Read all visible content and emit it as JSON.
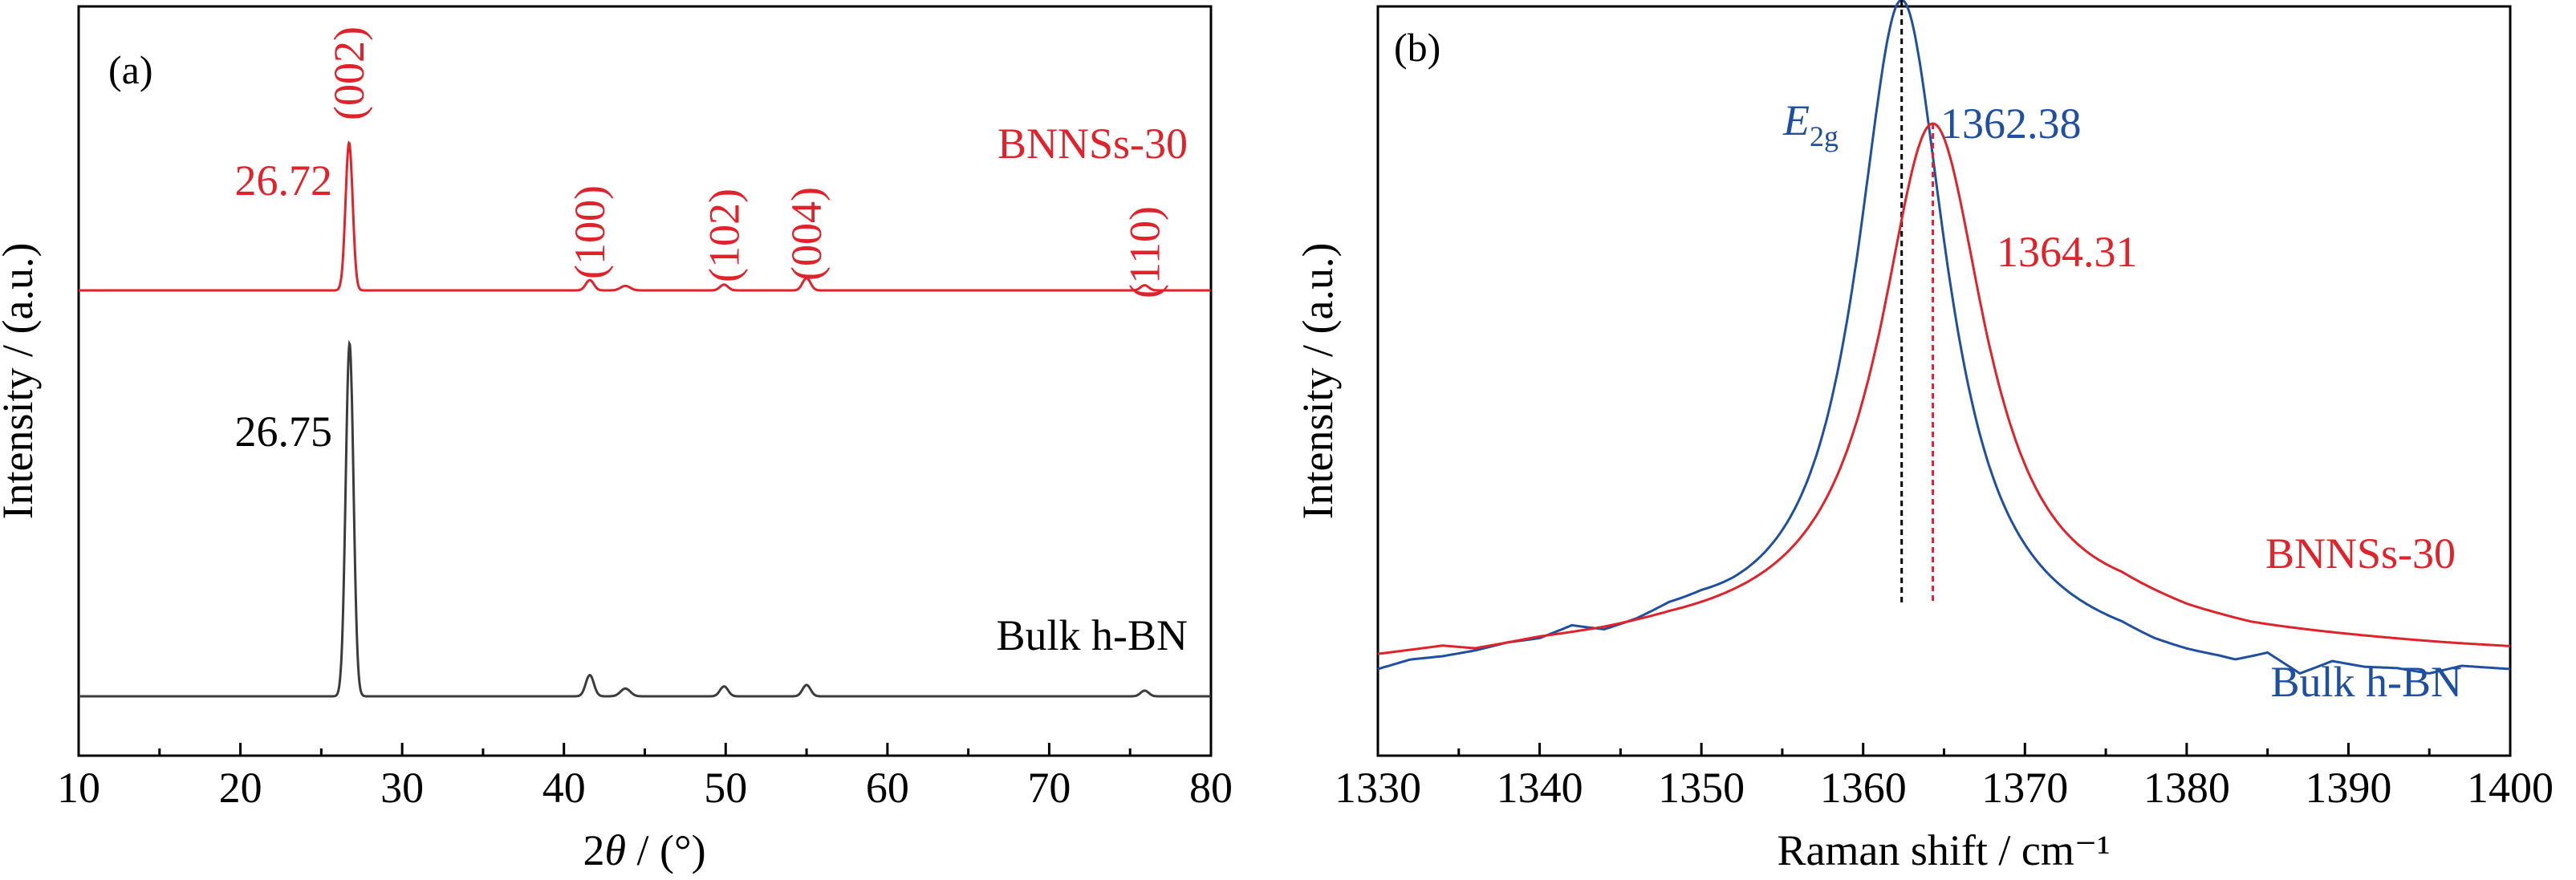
{
  "chart_data": [
    {
      "panel_label": "(a)",
      "type": "line",
      "xlabel_italic": "θ",
      "xlabel_prefix": "2",
      "xlabel_suffix": " / (°)",
      "ylabel": "Intensity / (a.u.)",
      "xlim": [
        10,
        80
      ],
      "xticks": [
        "10",
        "20",
        "30",
        "40",
        "50",
        "60",
        "70",
        "80"
      ],
      "y_ticks_shown": false,
      "series": [
        {
          "name": "BNNSs-30",
          "color": "#e0222a",
          "baseline": 0.2,
          "peaks": [
            {
              "x": 26.72,
              "h": 2.3,
              "w": 0.22
            },
            {
              "x": 41.6,
              "h": 0.16,
              "w": 0.25
            },
            {
              "x": 43.8,
              "h": 0.07,
              "w": 0.3
            },
            {
              "x": 49.9,
              "h": 0.09,
              "w": 0.25
            },
            {
              "x": 55.0,
              "h": 0.19,
              "w": 0.25
            },
            {
              "x": 75.9,
              "h": 0.08,
              "w": 0.25
            }
          ],
          "peak_label": "26.72",
          "reflections": [
            {
              "label": "(002)",
              "x": 26.72
            },
            {
              "label": "(100)",
              "x": 41.6
            },
            {
              "label": "(102)",
              "x": 49.9
            },
            {
              "label": "(004)",
              "x": 55.0
            },
            {
              "label": "(110)",
              "x": 75.9
            }
          ]
        },
        {
          "name": "Bulk h-BN",
          "color": "#3c3c3c",
          "baseline": 0.0,
          "peaks": [
            {
              "x": 26.75,
              "h": 5.0,
              "w": 0.24
            },
            {
              "x": 41.6,
              "h": 0.3,
              "w": 0.25
            },
            {
              "x": 43.8,
              "h": 0.11,
              "w": 0.3
            },
            {
              "x": 49.9,
              "h": 0.14,
              "w": 0.25
            },
            {
              "x": 55.0,
              "h": 0.16,
              "w": 0.25
            },
            {
              "x": 75.9,
              "h": 0.08,
              "w": 0.25
            }
          ],
          "peak_label": "26.75"
        }
      ]
    },
    {
      "panel_label": "(b)",
      "type": "line",
      "xlabel": "Raman shift / cm⁻¹",
      "ylabel": "Intensity / (a.u.)",
      "xlim": [
        1330,
        1400
      ],
      "xticks": [
        "1330",
        "1340",
        "1350",
        "1360",
        "1370",
        "1380",
        "1390",
        "1400"
      ],
      "y_ticks_shown": false,
      "mode_label": {
        "symbol": "E",
        "subscript": "2g"
      },
      "series": [
        {
          "name": "Bulk h-BN",
          "color": "#1f4fa0",
          "peak_center": 1362.38,
          "peak_label": "1362.38",
          "baseline_points": [
            [
              1330,
              0.13
            ],
            [
              1332,
              0.17
            ],
            [
              1334,
              0.18
            ],
            [
              1336,
              0.2
            ],
            [
              1338,
              0.23
            ],
            [
              1340,
              0.24
            ],
            [
              1342,
              0.29
            ],
            [
              1344,
              0.25
            ],
            [
              1346,
              0.28
            ],
            [
              1348,
              0.33
            ],
            [
              1350,
              0.34
            ],
            [
              1352,
              0.32
            ],
            [
              1376,
              0.2
            ],
            [
              1378,
              0.16
            ],
            [
              1380,
              0.14
            ],
            [
              1382,
              0.13
            ],
            [
              1383,
              0.12
            ],
            [
              1385,
              0.17
            ],
            [
              1387,
              0.08
            ],
            [
              1389,
              0.15
            ],
            [
              1391,
              0.13
            ],
            [
              1393,
              0.13
            ],
            [
              1395,
              0.11
            ],
            [
              1397,
              0.15
            ],
            [
              1400,
              0.14
            ]
          ],
          "peak_height": 2.98,
          "peak_width": 6.9,
          "baseline": 0.22
        },
        {
          "name": "BNNSs-30",
          "color": "#e0222a",
          "peak_center": 1364.31,
          "peak_label": "1364.31",
          "baseline_points": [
            [
              1330,
              0.2
            ],
            [
              1334,
              0.23
            ],
            [
              1336,
              0.21
            ],
            [
              1340,
              0.25
            ],
            [
              1344,
              0.27
            ],
            [
              1348,
              0.3
            ],
            [
              1376,
              0.4
            ],
            [
              1380,
              0.33
            ],
            [
              1384,
              0.29
            ],
            [
              1390,
              0.27
            ],
            [
              1396,
              0.25
            ],
            [
              1400,
              0.24
            ]
          ],
          "peak_height": 2.4,
          "peak_width": 8.2,
          "baseline": 0.24
        }
      ]
    }
  ]
}
